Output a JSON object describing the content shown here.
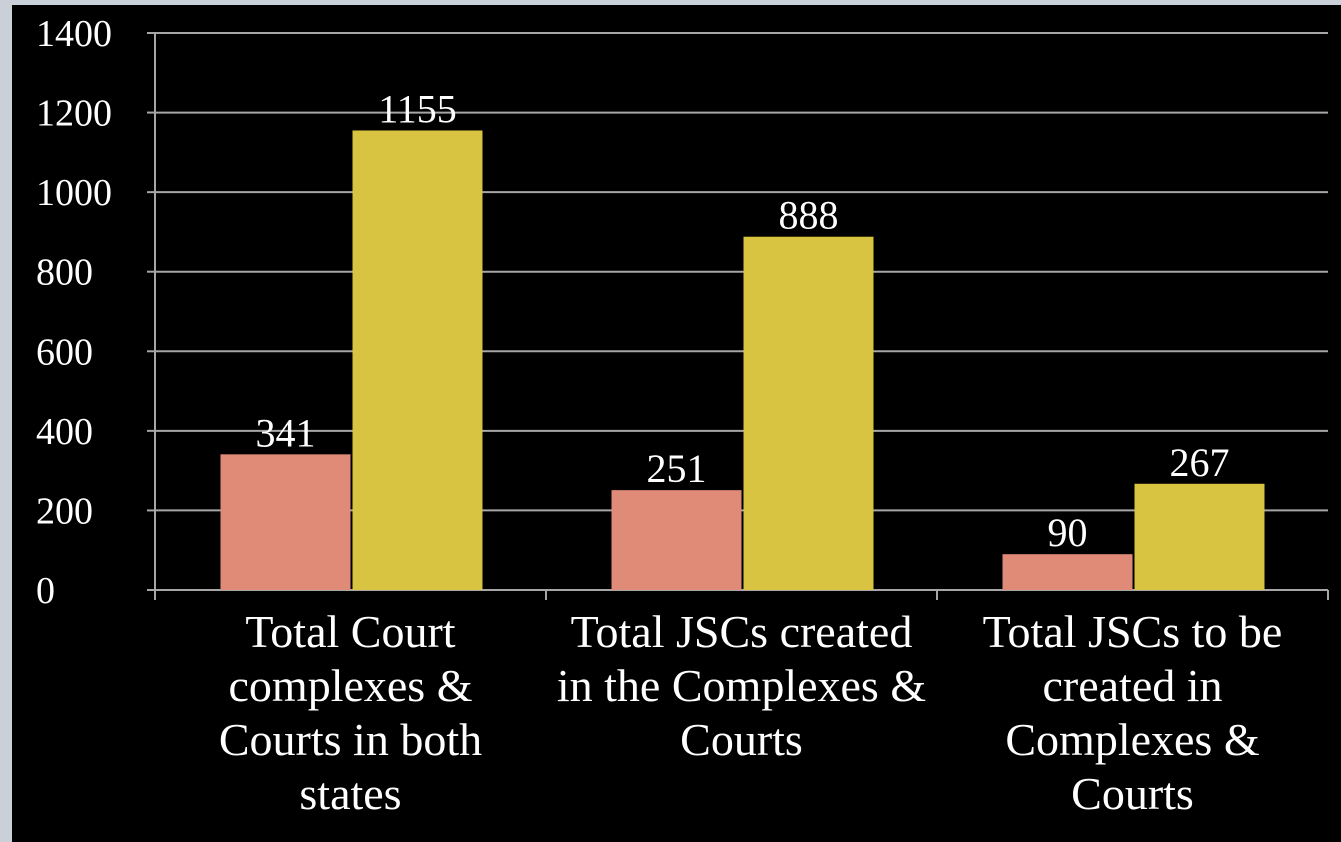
{
  "chart_data": {
    "type": "bar",
    "categories": [
      "Total Court complexes & Courts in both states",
      "Total JSCs created in the Complexes & Courts",
      "Total JSCs to be created in Complexes & Courts"
    ],
    "series": [
      {
        "color": "#e08a78",
        "values": [
          341,
          251,
          90
        ]
      },
      {
        "color": "#d9c441",
        "values": [
          1155,
          888,
          267
        ]
      }
    ],
    "ylim": [
      0,
      1400
    ],
    "yticks": [
      0,
      200,
      400,
      600,
      800,
      1000,
      1200,
      1400
    ],
    "grid": true
  }
}
